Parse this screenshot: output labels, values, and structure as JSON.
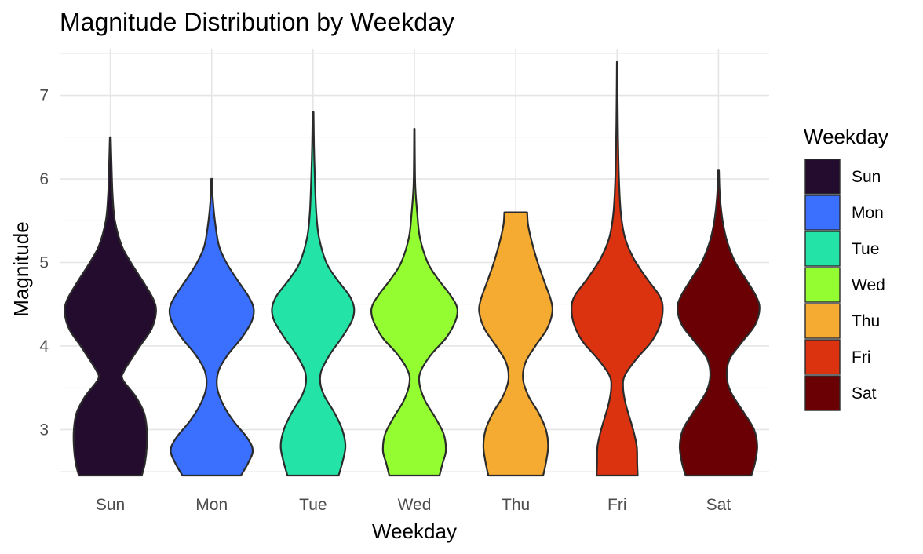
{
  "chart_data": {
    "type": "violin",
    "title": "Magnitude Distribution by Weekday",
    "xlabel": "Weekday",
    "ylabel": "Magnitude",
    "categories": [
      "Sun",
      "Mon",
      "Tue",
      "Wed",
      "Thu",
      "Fri",
      "Sat"
    ],
    "ylim": [
      2.45,
      7.55
    ],
    "yticks": [
      3,
      4,
      5,
      6,
      7
    ],
    "grid": true,
    "legend": {
      "title": "Weekday",
      "position": "right",
      "entries": [
        "Sun",
        "Mon",
        "Tue",
        "Wed",
        "Thu",
        "Fri",
        "Sat"
      ]
    },
    "series": [
      {
        "category": "Sun",
        "color": "#240c2e",
        "min": 2.45,
        "max": 6.5,
        "profile": [
          [
            2.45,
            0.69
          ],
          [
            2.6,
            0.76
          ],
          [
            2.8,
            0.8
          ],
          [
            3.0,
            0.8
          ],
          [
            3.2,
            0.74
          ],
          [
            3.4,
            0.55
          ],
          [
            3.6,
            0.27
          ],
          [
            3.7,
            0.3
          ],
          [
            3.85,
            0.47
          ],
          [
            4.0,
            0.65
          ],
          [
            4.2,
            0.9
          ],
          [
            4.4,
            1.0
          ],
          [
            4.55,
            0.95
          ],
          [
            4.75,
            0.74
          ],
          [
            5.0,
            0.45
          ],
          [
            5.2,
            0.25
          ],
          [
            5.5,
            0.1
          ],
          [
            5.8,
            0.05
          ],
          [
            6.1,
            0.03
          ],
          [
            6.5,
            0.01
          ]
        ]
      },
      {
        "category": "Mon",
        "color": "#3b6ffd",
        "min": 2.45,
        "max": 6.0,
        "profile": [
          [
            2.45,
            0.64
          ],
          [
            2.6,
            0.8
          ],
          [
            2.75,
            0.9
          ],
          [
            2.9,
            0.78
          ],
          [
            3.1,
            0.48
          ],
          [
            3.3,
            0.25
          ],
          [
            3.5,
            0.12
          ],
          [
            3.7,
            0.15
          ],
          [
            3.9,
            0.36
          ],
          [
            4.1,
            0.66
          ],
          [
            4.3,
            0.88
          ],
          [
            4.45,
            0.92
          ],
          [
            4.6,
            0.8
          ],
          [
            4.8,
            0.55
          ],
          [
            5.0,
            0.32
          ],
          [
            5.2,
            0.16
          ],
          [
            5.5,
            0.07
          ],
          [
            5.8,
            0.02
          ],
          [
            6.0,
            0.01
          ]
        ]
      },
      {
        "category": "Tue",
        "color": "#23e3a6",
        "min": 2.45,
        "max": 6.8,
        "profile": [
          [
            2.45,
            0.56
          ],
          [
            2.6,
            0.64
          ],
          [
            2.8,
            0.71
          ],
          [
            3.0,
            0.64
          ],
          [
            3.2,
            0.47
          ],
          [
            3.4,
            0.25
          ],
          [
            3.55,
            0.16
          ],
          [
            3.7,
            0.18
          ],
          [
            3.9,
            0.37
          ],
          [
            4.1,
            0.63
          ],
          [
            4.3,
            0.85
          ],
          [
            4.45,
            0.9
          ],
          [
            4.6,
            0.8
          ],
          [
            4.8,
            0.52
          ],
          [
            5.0,
            0.29
          ],
          [
            5.3,
            0.13
          ],
          [
            5.6,
            0.07
          ],
          [
            6.0,
            0.04
          ],
          [
            6.4,
            0.02
          ],
          [
            6.8,
            0.01
          ]
        ]
      },
      {
        "category": "Wed",
        "color": "#93fd31",
        "min": 2.45,
        "max": 6.6,
        "profile": [
          [
            2.45,
            0.55
          ],
          [
            2.6,
            0.62
          ],
          [
            2.75,
            0.69
          ],
          [
            2.95,
            0.64
          ],
          [
            3.15,
            0.45
          ],
          [
            3.35,
            0.23
          ],
          [
            3.55,
            0.11
          ],
          [
            3.7,
            0.14
          ],
          [
            3.9,
            0.37
          ],
          [
            4.1,
            0.7
          ],
          [
            4.3,
            0.9
          ],
          [
            4.45,
            0.94
          ],
          [
            4.6,
            0.8
          ],
          [
            4.8,
            0.52
          ],
          [
            5.0,
            0.29
          ],
          [
            5.3,
            0.12
          ],
          [
            5.6,
            0.06
          ],
          [
            5.9,
            0.02
          ],
          [
            6.2,
            0.01
          ],
          [
            6.6,
            0.005
          ]
        ]
      },
      {
        "category": "Thu",
        "color": "#f5ab31",
        "min": 2.45,
        "max": 5.6,
        "profile": [
          [
            2.45,
            0.6
          ],
          [
            2.6,
            0.66
          ],
          [
            2.8,
            0.71
          ],
          [
            3.0,
            0.66
          ],
          [
            3.2,
            0.5
          ],
          [
            3.4,
            0.28
          ],
          [
            3.6,
            0.16
          ],
          [
            3.8,
            0.21
          ],
          [
            4.0,
            0.43
          ],
          [
            4.2,
            0.68
          ],
          [
            4.4,
            0.8
          ],
          [
            4.55,
            0.77
          ],
          [
            4.75,
            0.64
          ],
          [
            5.0,
            0.48
          ],
          [
            5.25,
            0.35
          ],
          [
            5.45,
            0.27
          ],
          [
            5.6,
            0.25
          ]
        ]
      },
      {
        "category": "Fri",
        "color": "#db3210",
        "min": 2.45,
        "max": 7.4,
        "profile": [
          [
            2.45,
            0.45
          ],
          [
            2.6,
            0.44
          ],
          [
            2.8,
            0.43
          ],
          [
            3.0,
            0.35
          ],
          [
            3.3,
            0.19
          ],
          [
            3.5,
            0.13
          ],
          [
            3.65,
            0.17
          ],
          [
            3.85,
            0.43
          ],
          [
            4.05,
            0.75
          ],
          [
            4.25,
            0.94
          ],
          [
            4.45,
            1.0
          ],
          [
            4.6,
            0.93
          ],
          [
            4.8,
            0.66
          ],
          [
            5.05,
            0.36
          ],
          [
            5.3,
            0.17
          ],
          [
            5.6,
            0.08
          ],
          [
            6.0,
            0.04
          ],
          [
            6.5,
            0.02
          ],
          [
            7.0,
            0.01
          ],
          [
            7.4,
            0.005
          ]
        ]
      },
      {
        "category": "Sat",
        "color": "#6a0004",
        "min": 2.45,
        "max": 6.1,
        "profile": [
          [
            2.45,
            0.72
          ],
          [
            2.6,
            0.8
          ],
          [
            2.8,
            0.85
          ],
          [
            3.0,
            0.78
          ],
          [
            3.2,
            0.56
          ],
          [
            3.45,
            0.27
          ],
          [
            3.65,
            0.18
          ],
          [
            3.85,
            0.25
          ],
          [
            4.05,
            0.52
          ],
          [
            4.25,
            0.8
          ],
          [
            4.45,
            0.9
          ],
          [
            4.6,
            0.82
          ],
          [
            4.8,
            0.6
          ],
          [
            5.0,
            0.37
          ],
          [
            5.25,
            0.19
          ],
          [
            5.5,
            0.09
          ],
          [
            5.8,
            0.03
          ],
          [
            6.1,
            0.01
          ]
        ]
      }
    ]
  }
}
